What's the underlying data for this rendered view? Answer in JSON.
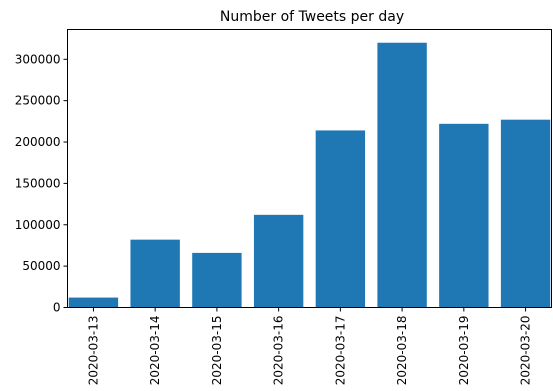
{
  "chart_data": {
    "type": "bar",
    "title": "Number of Tweets per day",
    "xlabel": "",
    "ylabel": "",
    "categories": [
      "2020-03-13",
      "2020-03-14",
      "2020-03-15",
      "2020-03-16",
      "2020-03-17",
      "2020-03-18",
      "2020-03-19",
      "2020-03-20"
    ],
    "values": [
      12000,
      82000,
      66000,
      112000,
      214000,
      320000,
      222000,
      227000
    ],
    "ylim": [
      0,
      336000
    ],
    "yticks": [
      0,
      50000,
      100000,
      150000,
      200000,
      250000,
      300000
    ],
    "ytick_labels": [
      "0",
      "50000",
      "100000",
      "150000",
      "200000",
      "250000",
      "300000"
    ],
    "bar_color": "#1f77b4",
    "grid": false,
    "legend": "none"
  }
}
